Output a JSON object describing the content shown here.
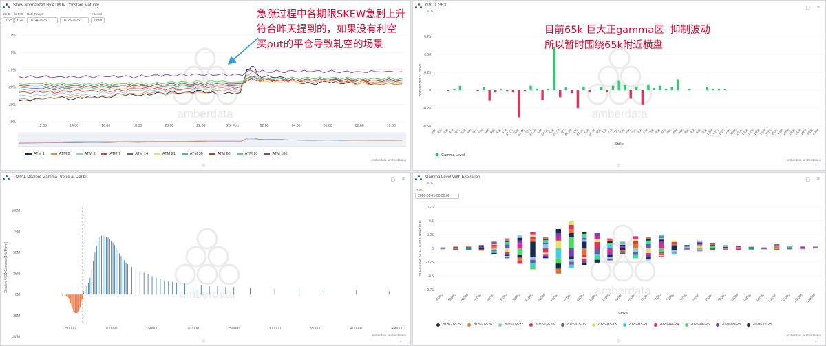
{
  "panels": {
    "skew": {
      "title": "Skew Normalized By ATM IV Constant Maturity",
      "controls": {
        "label_1": "Delta",
        "label_2": "C-P/C",
        "label_3": "Date Range",
        "label_4": "Interval",
        "val_1": ".025",
        "val_2": "C-P",
        "date_from": "02/24/2026",
        "date_to": "02/25/2026",
        "interval": "1 min"
      },
      "credit": "Amberdata, amberdata.io"
    },
    "gvol": {
      "title": "GVOL GEX",
      "sub": "BTC",
      "credit": "Amberdata, amberdata.io"
    },
    "dealers": {
      "title": "TOTAL Dealers Gamma Profile at Deribit",
      "credit": "amberdata, amberdata.io"
    },
    "gle": {
      "title": "Gamma Level With Expiration",
      "sub": "BTC",
      "date_label": "Date",
      "date_value": "2026-02-25 00:00:00",
      "credit": "Amberdata, amberdata.io"
    }
  },
  "annotations": {
    "left": "急涨过程中各期限SKEW急剧上升\n符合昨天提到的，如果没有利空\n买put的平仓导致轧空的场景",
    "right": "目前65k 巨大正gamma区  抑制波动\n所以暂时围绕65k附近横盘"
  },
  "watermark": "amberdata",
  "colors": {
    "accent_red": "#e6002a",
    "gex_pos": "#2ecc71",
    "gex_neg": "#e2335a",
    "dealer_pos": "#2f6fb5",
    "dealer_neg": "#f08050"
  },
  "chart_data": [
    {
      "type": "line",
      "ylim": [
        -40,
        10
      ],
      "yticks": [
        "10%",
        "0%",
        "-10%",
        "-20%",
        "-30%",
        "-40%"
      ],
      "xticks": [
        "12:00",
        "14:00",
        "16:00",
        "18:00",
        "20:00",
        "22:00",
        "25. Feb",
        "02:00",
        "04:00",
        "06:00",
        "08:00",
        "10:00"
      ],
      "x": [
        10.5,
        12,
        13,
        14,
        15,
        16,
        17,
        18,
        19,
        20,
        21,
        22,
        23,
        24.5,
        24.9,
        25.3,
        25.6,
        26,
        27,
        28,
        29,
        30,
        31,
        32,
        33,
        34.7
      ],
      "series": [
        {
          "name": "ATM 1",
          "color": "#1a2a4e",
          "values": [
            -28,
            -27,
            -26,
            -27,
            -25,
            -26,
            -24,
            -25,
            -24,
            -23,
            -23,
            -22,
            -24,
            -23,
            -10,
            -8,
            -13,
            -14,
            -14,
            -17,
            -18,
            -17,
            -18,
            -17,
            -18,
            -18
          ]
        },
        {
          "name": "ATM 2",
          "color": "#f08a3c",
          "values": [
            -27,
            -27,
            -26,
            -25,
            -26,
            -25,
            -24,
            -24,
            -23,
            -24,
            -23,
            -23,
            -22,
            -22,
            -13,
            -11,
            -14,
            -15,
            -16,
            -16,
            -17,
            -16,
            -17,
            -18,
            -18,
            -18
          ]
        },
        {
          "name": "ATM 3",
          "color": "#8fc8ec",
          "values": [
            -25,
            -25,
            -24,
            -24,
            -24,
            -23,
            -23,
            -22,
            -22,
            -22,
            -21,
            -21,
            -21,
            -21,
            -15,
            -14,
            -15,
            -15,
            -16,
            -16,
            -16,
            -16,
            -16,
            -16,
            -17,
            -16
          ]
        },
        {
          "name": "ATM 7",
          "color": "#e2335a",
          "values": [
            -23,
            -23,
            -23,
            -22,
            -22,
            -22,
            -22,
            -21,
            -21,
            -21,
            -21,
            -20,
            -20,
            -20,
            -16,
            -15,
            -16,
            -16,
            -16,
            -16,
            -17,
            -16,
            -17,
            -17,
            -17,
            -17
          ]
        },
        {
          "name": "ATM 14",
          "color": "#6a5aa8",
          "values": [
            -21,
            -21,
            -21,
            -20,
            -20,
            -20,
            -20,
            -20,
            -19,
            -19,
            -19,
            -19,
            -19,
            -19,
            -15,
            -14,
            -15,
            -15,
            -15,
            -15,
            -15,
            -15,
            -16,
            -16,
            -16,
            -16
          ]
        },
        {
          "name": "ATM 21",
          "color": "#e0e070",
          "values": [
            -22,
            -22,
            -22,
            -21,
            -21,
            -21,
            -21,
            -20,
            -20,
            -20,
            -20,
            -20,
            -20,
            -19,
            -16,
            -16,
            -16,
            -17,
            -17,
            -17,
            -17,
            -17,
            -17,
            -17,
            -17,
            -17
          ]
        },
        {
          "name": "ATM 30",
          "color": "#3fb8c8",
          "values": [
            -20,
            -20,
            -20,
            -20,
            -20,
            -20,
            -19,
            -19,
            -19,
            -19,
            -19,
            -18,
            -18,
            -18,
            -15,
            -15,
            -15,
            -15,
            -15,
            -15,
            -15,
            -15,
            -15,
            -15,
            -15,
            -15
          ]
        },
        {
          "name": "ATM 60",
          "color": "#c0392b",
          "values": [
            -19,
            -19,
            -19,
            -19,
            -19,
            -19,
            -19,
            -19,
            -19,
            -18,
            -18,
            -18,
            -18,
            -18,
            -16,
            -16,
            -16,
            -16,
            -16,
            -16,
            -16,
            -16,
            -16,
            -16,
            -16,
            -16
          ]
        },
        {
          "name": "ATM 90",
          "color": "#4cd964",
          "values": [
            -18,
            -18,
            -18,
            -18,
            -18,
            -18,
            -18,
            -18,
            -18,
            -17,
            -17,
            -17,
            -17,
            -17,
            -15,
            -15,
            -15,
            -15,
            -15,
            -15,
            -15,
            -15,
            -15,
            -15,
            -15,
            -15
          ]
        },
        {
          "name": "ATM 180",
          "color": "#7b3fb8",
          "values": [
            -14,
            -14,
            -14,
            -14,
            -14,
            -14,
            -14,
            -14,
            -13,
            -13,
            -13,
            -13,
            -13,
            -13,
            -11,
            -11,
            -11,
            -11,
            -11,
            -11,
            -11,
            -11,
            -11,
            -11,
            -11,
            -11
          ]
        }
      ]
    },
    {
      "type": "bar",
      "xlabel": "Strike",
      "ylabel": "Contracts per $1 move",
      "ylim": [
        -0.5,
        0.75
      ],
      "yticks": [
        "0.75",
        "0.50",
        "0.25",
        "0",
        "-0.25",
        "-0.50"
      ],
      "categories": [
        "20K",
        "30K",
        "40K",
        "45K",
        "50K",
        "53K",
        "55K",
        "56K",
        "57K",
        "58K",
        "59K",
        "60K",
        "61K",
        "61.5K",
        "62K",
        "62.5K",
        "63K",
        "63.5K",
        "64K",
        "64.5K",
        "65K",
        "65.5K",
        "66K",
        "66.5K",
        "67K",
        "67.5K",
        "68K",
        "68.5K",
        "69K",
        "70K",
        "71K",
        "72K",
        "73K",
        "74K",
        "75K",
        "76K",
        "77K",
        "78K",
        "80K",
        "82K",
        "84K",
        "85K",
        "86K",
        "88K",
        "90K",
        "92K",
        "95K",
        "100K",
        "105K",
        "110K",
        "115K",
        "120K",
        "125K",
        "130K",
        "140K",
        "150K",
        "160K",
        "170K",
        "180K",
        "190K",
        "200K",
        "220K",
        "250K",
        "300K",
        "350K",
        "400K"
      ],
      "series": [
        {
          "name": "Gamma Level",
          "values": [
            0,
            0,
            -0.02,
            0.02,
            0.06,
            0,
            0,
            -0.02,
            0.04,
            -0.15,
            -0.03,
            0.02,
            -0.02,
            -0.03,
            -0.38,
            -0.02,
            0.06,
            0.02,
            -0.14,
            0.02,
            0.6,
            -0.1,
            0.04,
            -0.04,
            -0.25,
            0.05,
            -0.03,
            0,
            0.04,
            -0.03,
            0.06,
            0.13,
            0.07,
            -0.12,
            0.05,
            -0.2,
            0.08,
            0.03,
            0.06,
            0.02,
            0.04,
            0.15,
            0,
            0.02,
            0,
            0,
            0.04,
            0.01,
            0.02,
            0.01,
            0,
            0,
            0,
            0,
            0,
            0,
            0,
            0,
            0,
            0,
            0,
            0,
            0,
            0,
            0,
            0
          ]
        }
      ]
    },
    {
      "type": "bar",
      "ylabel": "Dealers USD Gamma (1% Move)",
      "ylim": [
        -35,
        100
      ],
      "yticks": [
        "100M",
        "75M",
        "50M",
        "25M",
        "0M",
        "-25M",
        "-50M"
      ],
      "xticks": [
        "50000",
        "100000",
        "150000",
        "200000",
        "250000",
        "300000",
        "350000",
        "400000",
        "450000"
      ],
      "xlim": [
        0,
        460000
      ],
      "spot": 65000,
      "x": [
        40000,
        45000,
        48000,
        50000,
        52000,
        54000,
        56000,
        58000,
        60000,
        62000,
        64000,
        66000,
        68000,
        70000,
        72000,
        74000,
        76000,
        78000,
        80000,
        82000,
        84000,
        86000,
        88000,
        90000,
        92000,
        94000,
        96000,
        98000,
        100000,
        102000,
        104000,
        106000,
        108000,
        110000,
        112000,
        114000,
        116000,
        118000,
        120000,
        125000,
        130000,
        135000,
        140000,
        145000,
        150000,
        155000,
        160000,
        165000,
        170000,
        175000,
        180000,
        190000,
        200000,
        210000,
        220000,
        230000,
        240000,
        250000,
        270000,
        300000,
        330000,
        360000,
        400000,
        440000
      ],
      "values": [
        -1,
        -2,
        -4,
        -10,
        -16,
        -20,
        -22,
        -22,
        -20,
        -15,
        -6,
        4,
        8,
        10,
        14,
        20,
        30,
        40,
        50,
        58,
        64,
        68,
        70,
        70,
        70,
        69,
        68,
        66,
        64,
        62,
        59,
        56,
        52,
        49,
        46,
        43,
        41,
        38,
        36,
        33,
        30,
        28,
        26,
        24,
        22,
        20,
        19,
        17,
        16,
        15,
        14,
        13,
        12,
        11,
        10,
        10,
        9,
        9,
        8,
        7,
        6,
        5,
        5,
        4
      ]
    },
    {
      "type": "bar",
      "xlabel": "Strike",
      "ylabel": "Nr contracts for $1 move in underlying",
      "ylim": [
        -0.75,
        0.75
      ],
      "yticks": [
        "0.75",
        "0.5",
        "0.25",
        "0",
        "-0.25",
        "-0.5",
        "-0.75"
      ],
      "categories": [
        "40000",
        "50000",
        "52000",
        "54000",
        "56000",
        "58000",
        "60000",
        "61000",
        "62000",
        "63000",
        "64000",
        "65000",
        "66000",
        "67000",
        "68000",
        "69000",
        "70000",
        "71000",
        "72000",
        "73000",
        "74000",
        "75000",
        "80000",
        "85000",
        "90000",
        "95000",
        "100000",
        "110000",
        "120000",
        "130000"
      ],
      "series": [
        {
          "name": "2026-02-25",
          "color": "#1a2a4e"
        },
        {
          "name": "2026-02-26",
          "color": "#e2733a"
        },
        {
          "name": "2026-02-27",
          "color": "#8fc8ec"
        },
        {
          "name": "2026-02-28",
          "color": "#e2335a"
        },
        {
          "name": "2026-03-06",
          "color": "#6a5aa8"
        },
        {
          "name": "2026-03-13",
          "color": "#e0e070"
        },
        {
          "name": "2026-03-27",
          "color": "#3fd0e0"
        },
        {
          "name": "2026-04-24",
          "color": "#e0289a"
        },
        {
          "name": "2026-06-26",
          "color": "#4cd964"
        },
        {
          "name": "2026-09-25",
          "color": "#7b3fb8"
        },
        {
          "name": "2026-12-25",
          "color": "#13304d"
        }
      ],
      "stacks": [
        [
          0.02,
          -0.01
        ],
        [
          0.03,
          -0.02
        ],
        [
          0.04,
          -0.03
        ],
        [
          0.06,
          -0.05
        ],
        [
          0.12,
          -0.1
        ],
        [
          0.18,
          -0.18
        ],
        [
          0.24,
          -0.28
        ],
        [
          0.3,
          -0.38
        ],
        [
          0.2,
          -0.2
        ],
        [
          0.35,
          -0.46
        ],
        [
          0.5,
          -0.35
        ],
        [
          0.3,
          -0.3
        ],
        [
          0.28,
          -0.26
        ],
        [
          0.18,
          -0.22
        ],
        [
          0.12,
          -0.1
        ],
        [
          0.22,
          -0.18
        ],
        [
          0.2,
          -0.22
        ],
        [
          0.25,
          -0.16
        ],
        [
          0.14,
          -0.1
        ],
        [
          0.06,
          -0.03
        ],
        [
          0.14,
          -0.06
        ],
        [
          0.1,
          -0.04
        ],
        [
          0.06,
          -0.03
        ],
        [
          0.05,
          -0.02
        ],
        [
          0.03,
          -0.02
        ],
        [
          0.02,
          -0.01
        ],
        [
          0.07,
          -0.02
        ],
        [
          0.05,
          -0.01
        ],
        [
          0.04,
          -0.01
        ],
        [
          0.03,
          0
        ]
      ]
    }
  ]
}
